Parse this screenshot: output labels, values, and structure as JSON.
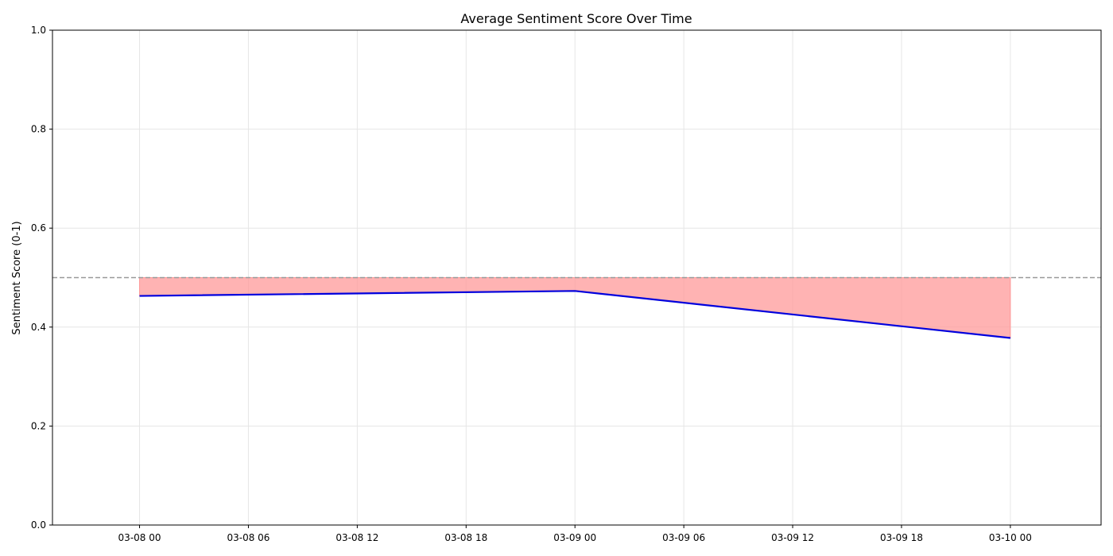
{
  "chart_data": {
    "type": "line",
    "title": "Average Sentiment Score Over Time",
    "xlabel": "",
    "ylabel": "Sentiment Score (0-1)",
    "x": [
      "2024-03-08T00:00",
      "2024-03-09T00:00",
      "2024-03-10T00:00"
    ],
    "series": [
      {
        "values": [
          0.463,
          0.473,
          0.378
        ],
        "color": "#0000dd"
      }
    ],
    "reference_line": {
      "y": 0.5,
      "style": "dashed",
      "color": "#999999"
    },
    "fill_between": {
      "baseline": 0.5,
      "color": "#ff9999"
    },
    "xlim": [
      "2024-03-07T19:12",
      "2024-03-10T05:00"
    ],
    "ylim": [
      0,
      1
    ],
    "x_ticks": [
      {
        "value": "2024-03-08T00:00",
        "label": "03-08 00"
      },
      {
        "value": "2024-03-08T06:00",
        "label": "03-08 06"
      },
      {
        "value": "2024-03-08T12:00",
        "label": "03-08 12"
      },
      {
        "value": "2024-03-08T18:00",
        "label": "03-08 18"
      },
      {
        "value": "2024-03-09T00:00",
        "label": "03-09 00"
      },
      {
        "value": "2024-03-09T06:00",
        "label": "03-09 06"
      },
      {
        "value": "2024-03-09T12:00",
        "label": "03-09 12"
      },
      {
        "value": "2024-03-09T18:00",
        "label": "03-09 18"
      },
      {
        "value": "2024-03-10T00:00",
        "label": "03-10 00"
      }
    ],
    "y_ticks": [
      {
        "value": 0.0,
        "label": "0.0"
      },
      {
        "value": 0.2,
        "label": "0.2"
      },
      {
        "value": 0.4,
        "label": "0.4"
      },
      {
        "value": 0.6,
        "label": "0.6"
      },
      {
        "value": 0.8,
        "label": "0.8"
      },
      {
        "value": 1.0,
        "label": "1.0"
      }
    ],
    "grid": true
  }
}
